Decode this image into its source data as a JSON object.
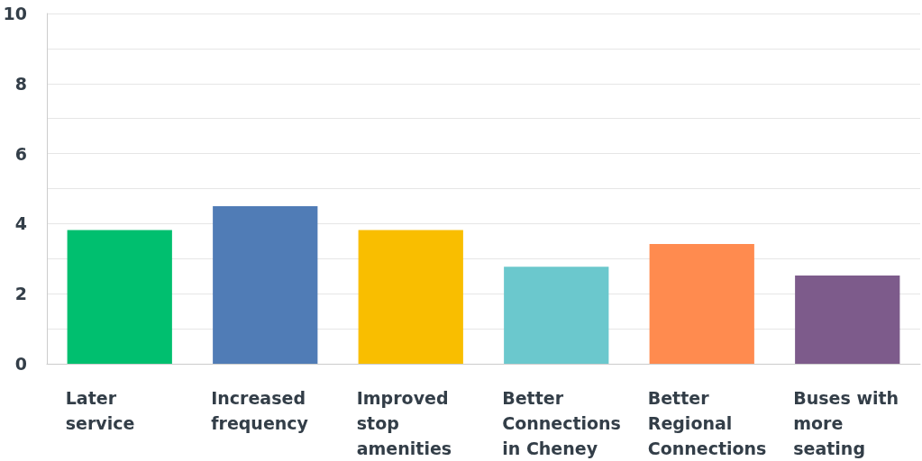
{
  "chart_data": {
    "type": "bar",
    "categories": [
      "Later\nservice",
      "Increased\nfrequency",
      "Improved\nstop\namenities",
      "Better\nConnections\nin Cheney",
      "Better\nRegional\nConnections",
      "Buses with\nmore\nseating"
    ],
    "values": [
      3.82,
      4.5,
      3.82,
      2.77,
      3.42,
      2.52
    ],
    "colors": [
      "#00bf6f",
      "#507cb6",
      "#f9be00",
      "#6bc8cd",
      "#ff8b4f",
      "#7d5b8b"
    ],
    "ylim": [
      0,
      10
    ],
    "yticks": [
      0,
      {
        "value": 1,
        "label": null
      },
      2,
      {
        "value": 3,
        "label": null
      },
      4,
      {
        "value": 5,
        "label": null
      },
      6,
      {
        "value": 7,
        "label": null
      },
      8,
      {
        "value": 9,
        "label": null
      },
      10
    ],
    "grid": "y"
  }
}
